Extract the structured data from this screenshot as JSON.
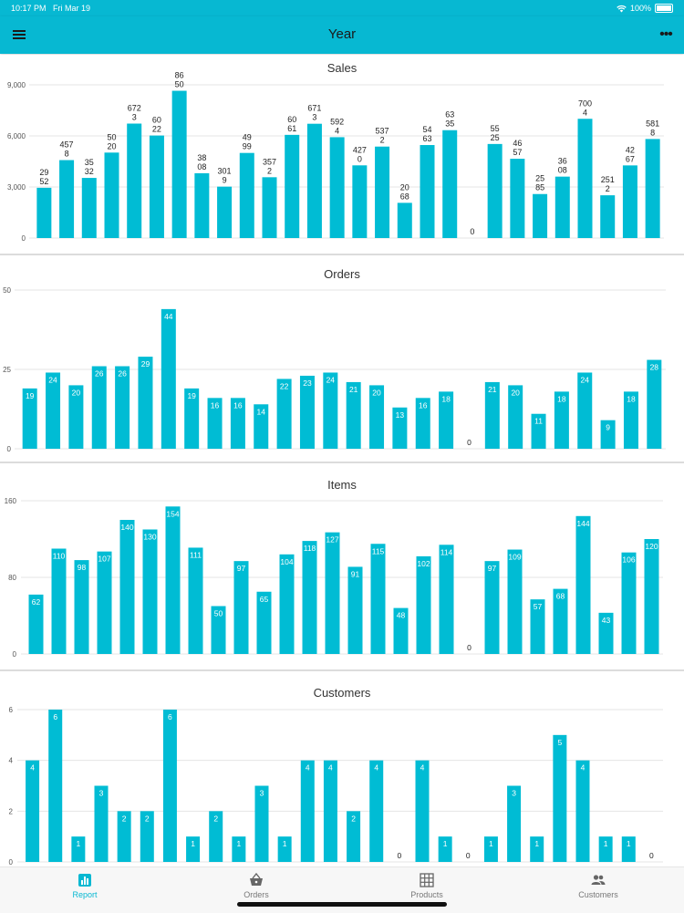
{
  "status_bar": {
    "time": "10:17 PM",
    "date": "Fri Mar 19",
    "battery": "100%"
  },
  "app_bar": {
    "title": "Year",
    "menu_icon": "hamburger-menu-icon",
    "more_icon": "more-options-icon"
  },
  "colors": {
    "accent": "#07b8d2",
    "bar": "#00bcd4"
  },
  "bottom_nav": {
    "items": [
      {
        "label": "Report",
        "icon": "bar-chart-icon",
        "active": true
      },
      {
        "label": "Orders",
        "icon": "basket-icon",
        "active": false
      },
      {
        "label": "Products",
        "icon": "grid-icon",
        "active": false
      },
      {
        "label": "Customers",
        "icon": "people-icon",
        "active": false
      }
    ]
  },
  "chart_data": [
    {
      "type": "bar",
      "title": "Sales",
      "ylim": [
        0,
        9000
      ],
      "yticks": [
        "0",
        "3,000",
        "6,000",
        "9,000"
      ],
      "ytick_values": [
        0,
        3000,
        6000,
        9000
      ],
      "label_position": "above",
      "values": [
        2952,
        4578,
        3532,
        5020,
        6723,
        6022,
        8650,
        3808,
        3019,
        4999,
        3572,
        6061,
        6713,
        5924,
        4270,
        5372,
        2068,
        5463,
        6335,
        0,
        5525,
        4657,
        2585,
        3608,
        7004,
        2512,
        4267,
        5818
      ],
      "labels": [
        [
          "29",
          "52"
        ],
        [
          "457",
          "8"
        ],
        [
          "35",
          "32"
        ],
        [
          "50",
          "20"
        ],
        [
          "672",
          "3"
        ],
        [
          "60",
          "22"
        ],
        [
          "86",
          "50"
        ],
        [
          "38",
          "08"
        ],
        [
          "301",
          "9"
        ],
        [
          "49",
          "99"
        ],
        [
          "357",
          "2"
        ],
        [
          "60",
          "61"
        ],
        [
          "671",
          "3"
        ],
        [
          "592",
          "4"
        ],
        [
          "427",
          "0"
        ],
        [
          "537",
          "2"
        ],
        [
          "20",
          "68"
        ],
        [
          "54",
          "63"
        ],
        [
          "63",
          "35"
        ],
        [
          "0"
        ],
        [
          "55",
          "25"
        ],
        [
          "46",
          "57"
        ],
        [
          "25",
          "85"
        ],
        [
          "36",
          "08"
        ],
        [
          "700",
          "4"
        ],
        [
          "251",
          "2"
        ],
        [
          "42",
          "67"
        ],
        [
          "581",
          "8"
        ]
      ]
    },
    {
      "type": "bar",
      "title": "Orders",
      "ylim": [
        0,
        50
      ],
      "yticks": [
        "0",
        "25",
        "50"
      ],
      "ytick_values": [
        0,
        25,
        50
      ],
      "label_position": "inside",
      "values": [
        19,
        24,
        20,
        26,
        26,
        29,
        44,
        19,
        16,
        16,
        14,
        22,
        23,
        24,
        21,
        20,
        13,
        16,
        18,
        0,
        21,
        20,
        11,
        18,
        24,
        9,
        18,
        28
      ]
    },
    {
      "type": "bar",
      "title": "Items",
      "ylim": [
        0,
        160
      ],
      "yticks": [
        "0",
        "80",
        "160"
      ],
      "ytick_values": [
        0,
        80,
        160
      ],
      "label_position": "inside",
      "values": [
        62,
        110,
        98,
        107,
        140,
        130,
        154,
        111,
        50,
        97,
        65,
        104,
        118,
        127,
        91,
        115,
        48,
        102,
        114,
        0,
        97,
        109,
        57,
        68,
        144,
        43,
        106,
        120
      ]
    },
    {
      "type": "bar",
      "title": "Customers",
      "ylim": [
        0,
        6
      ],
      "yticks": [
        "0",
        "2",
        "4",
        "6"
      ],
      "ytick_values": [
        0,
        2,
        4,
        6
      ],
      "label_position": "inside",
      "values": [
        4,
        6,
        1,
        3,
        2,
        2,
        6,
        1,
        2,
        1,
        3,
        1,
        4,
        4,
        2,
        4,
        0,
        4,
        1,
        0,
        1,
        3,
        1,
        5,
        4,
        1,
        1,
        0
      ]
    }
  ]
}
